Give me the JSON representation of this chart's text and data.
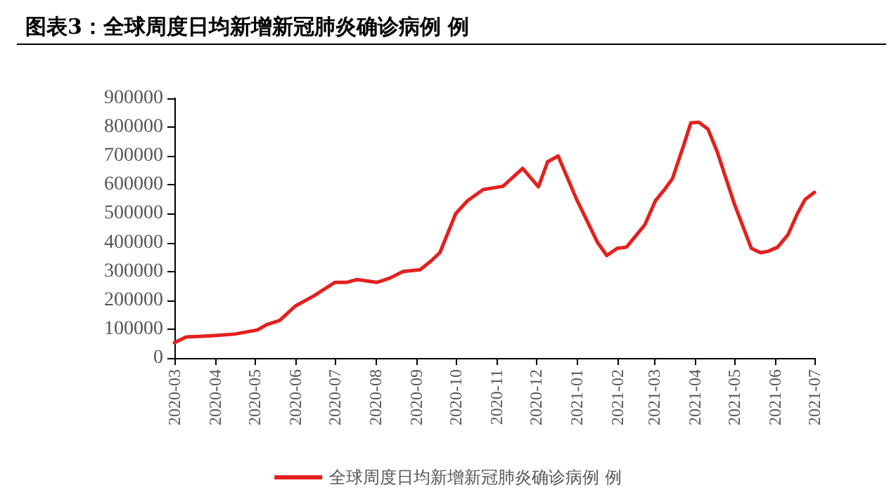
{
  "chart_data": {
    "type": "line",
    "title": "图表3：全球周度日均新增新冠肺炎确诊病例 例",
    "series": [
      {
        "name": "全球周度日均新增新冠肺炎确诊病例 例",
        "color": "#e3201f",
        "x": [
          "2020-03-01",
          "2020-03-10",
          "2020-03-20",
          "2020-04-01",
          "2020-04-16",
          "2020-05-03",
          "2020-05-10",
          "2020-05-20",
          "2020-06-01",
          "2020-06-15",
          "2020-07-01",
          "2020-07-10",
          "2020-07-18",
          "2020-08-02",
          "2020-08-12",
          "2020-08-22",
          "2020-09-04",
          "2020-09-12",
          "2020-09-19",
          "2020-10-01",
          "2020-10-10",
          "2020-10-22",
          "2020-11-06",
          "2020-11-21",
          "2020-12-03",
          "2020-12-10",
          "2020-12-18",
          "2021-01-01",
          "2021-01-17",
          "2021-01-24",
          "2021-02-01",
          "2021-02-08",
          "2021-02-15",
          "2021-02-22",
          "2021-03-02",
          "2021-03-09",
          "2021-03-15",
          "2021-03-24",
          "2021-03-29",
          "2021-04-04",
          "2021-04-11",
          "2021-04-18",
          "2021-05-01",
          "2021-05-14",
          "2021-05-21",
          "2021-05-27",
          "2021-06-03",
          "2021-06-11",
          "2021-06-18",
          "2021-06-24",
          "2021-07-01"
        ],
        "values": [
          53000,
          73000,
          75000,
          78000,
          83000,
          97000,
          115000,
          130000,
          180000,
          215000,
          262000,
          262000,
          272000,
          262000,
          277000,
          300000,
          306000,
          335000,
          365000,
          500000,
          545000,
          584000,
          595000,
          657000,
          593000,
          680000,
          700000,
          550000,
          400000,
          355000,
          380000,
          384000,
          423000,
          462000,
          545000,
          584000,
          622000,
          744000,
          815000,
          817000,
          793000,
          715000,
          535000,
          380000,
          365000,
          370000,
          384000,
          428000,
          500000,
          550000,
          574000
        ]
      }
    ],
    "xlim": [
      "2020-03",
      "2021-07"
    ],
    "xticks": [
      "2020-03",
      "2020-04",
      "2020-05",
      "2020-06",
      "2020-07",
      "2020-08",
      "2020-09",
      "2020-10",
      "2020-11",
      "2020-12",
      "2021-01",
      "2021-02",
      "2021-03",
      "2021-04",
      "2021-05",
      "2021-06",
      "2021-07"
    ],
    "ylim": [
      0,
      900000
    ],
    "yticks": [
      0,
      100000,
      200000,
      300000,
      400000,
      500000,
      600000,
      700000,
      800000,
      900000
    ],
    "grid": false,
    "legend": "bottom",
    "marker": "none",
    "line_style": "solid"
  }
}
